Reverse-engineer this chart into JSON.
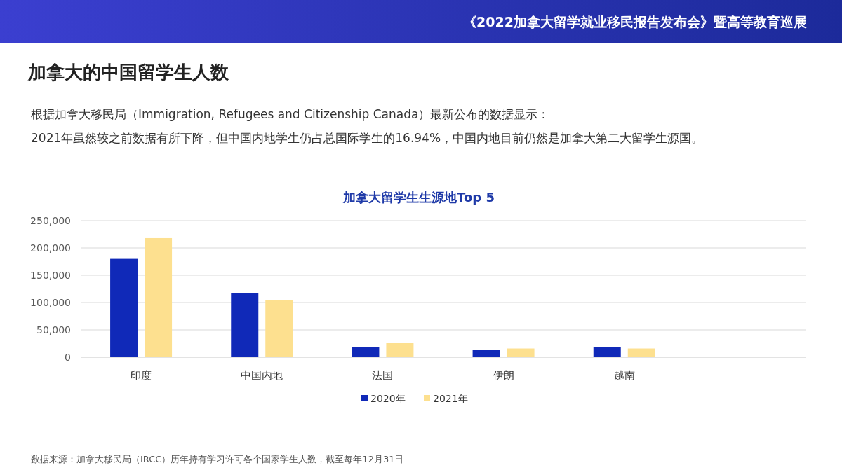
{
  "chart_data": {
    "type": "bar",
    "title": "加拿大留学生生源地Top 5",
    "categories": [
      "印度",
      "中国内地",
      "法国",
      "伊朗",
      "越南",
      null
    ],
    "series": [
      {
        "name": "2020年",
        "color": "#1029b8",
        "values": [
          180000,
          117000,
          18000,
          13000,
          18000,
          null
        ]
      },
      {
        "name": "2021年",
        "color": "#fde08f",
        "values": [
          218000,
          105000,
          26000,
          16000,
          16000,
          null
        ]
      }
    ],
    "ylim": [
      0,
      250000
    ],
    "yticks": [
      {
        "value": 0,
        "label": "0"
      },
      {
        "value": 50000,
        "label": "50,000"
      },
      {
        "value": 100000,
        "label": "100,000"
      },
      {
        "value": 150000,
        "label": "150,000"
      },
      {
        "value": 200000,
        "label": "200,000"
      },
      {
        "value": 250000,
        "label": "250,000"
      }
    ],
    "grid": "y",
    "legend": "bottom",
    "annotations": [
      "《2022加拿大留学就业移民报告发布会》暨高等教育巡展",
      "加拿大的中国留学生人数",
      "根据加拿大移民局（Immigration, Refugees and Citizenship Canada）最新公布的数据显示：",
      "2021年虽然较之前数据有所下降，但中国内地学生仍占总国际学生的16.94%，中国内地目前仍然是加拿大第二大留学生源国。",
      "数据来源：加拿大移民局（IRCC）历年持有学习许可各个国家学生人数，截至每年12月31日"
    ]
  }
}
